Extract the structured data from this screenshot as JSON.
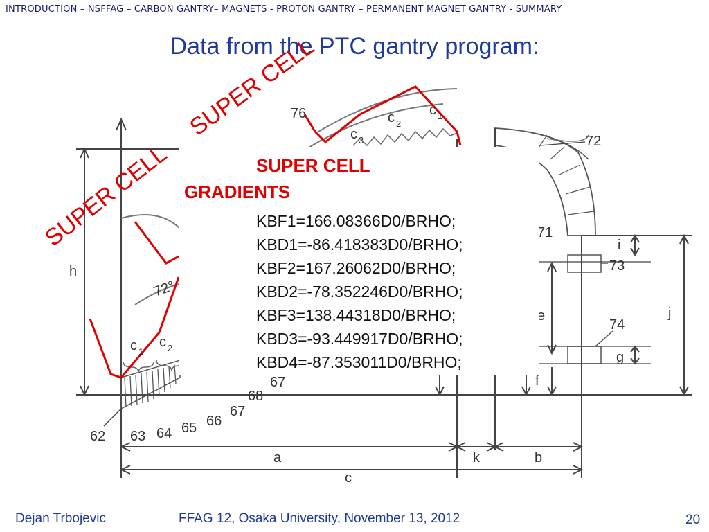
{
  "header": {
    "breadcrumb": "INTRODUCTION – NSFFAG – CARBON GANTRY– MAGNETS - PROTON GANTRY – PERMANENT MAGNET GANTRY - SUMMARY"
  },
  "slide": {
    "title": "Data from the PTC gantry program:",
    "annotation_top": "SUPER CELL",
    "annotation_left": "SUPER CELL"
  },
  "figure": {
    "labels": {
      "n76": "76",
      "n72": "72",
      "n71": "71",
      "n73": "73",
      "n74": "74",
      "n62": "62",
      "n63": "63",
      "n64": "64",
      "n65": "65",
      "n66": "66",
      "n67a": "67",
      "n67b": "67",
      "n68": "68",
      "n66b": "66",
      "c1a": "c",
      "c1a_sub": "1",
      "c2a": "c",
      "c2a_sub": "2",
      "c1b": "c",
      "c1b_sub": "1",
      "c2b": "c",
      "c2b_sub": "2",
      "c3b": "c",
      "c3b_sub": "3",
      "a": "a",
      "k": "k",
      "b": "b",
      "c": "c",
      "h": "h",
      "i": "i",
      "j": "j",
      "g": "g",
      "f": "f",
      "e": "e",
      "angle": "72°"
    }
  },
  "gradients": {
    "title_line1": "SUPER CELL",
    "title_line2": "GRADIENTS",
    "lines": [
      "KBF1=166.08366D0/BRHO;",
      "KBD1=-86.418383D0/BRHO;",
      "KBF2=167.26062D0/BRHO;",
      "KBD2=-78.352246D0/BRHO;",
      "KBF3=138.44318D0/BRHO;",
      "KBD3=-93.449917D0/BRHO;",
      "KBD4=-87.353011D0/BRHO;"
    ]
  },
  "footer": {
    "author": "Dejan Trbojevic",
    "event": "FFAG 12, Osaka University, November 13, 2012",
    "page": "20"
  },
  "colors": {
    "title": "#1f3a9a",
    "accent_red": "#e00000",
    "header": "#1a1a6e"
  }
}
